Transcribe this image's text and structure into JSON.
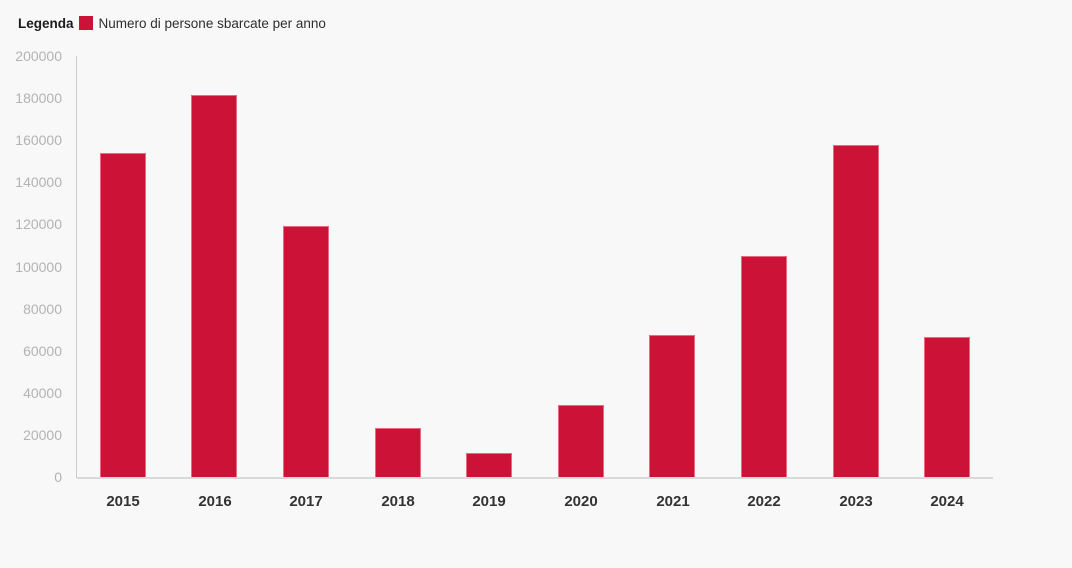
{
  "legend": {
    "title": "Legenda",
    "series_label": "Numero di persone sbarcate per anno"
  },
  "colors": {
    "bar": "#cc1237",
    "background": "#f8f8f8",
    "axis_line": "#cccccc",
    "baseline": "#d9d9d9",
    "y_label": "#b3b3b3",
    "x_label": "#333333"
  },
  "chart_data": {
    "type": "bar",
    "title": "",
    "xlabel": "",
    "ylabel": "",
    "categories": [
      "2015",
      "2016",
      "2017",
      "2018",
      "2019",
      "2020",
      "2021",
      "2022",
      "2023",
      "2024"
    ],
    "series": [
      {
        "name": "Numero di persone sbarcate per anno",
        "values": [
          153842,
          181436,
          119369,
          23370,
          11471,
          34154,
          67477,
          105131,
          157652,
          66317
        ]
      }
    ],
    "ylim": [
      0,
      200000
    ],
    "y_ticks": [
      0,
      20000,
      40000,
      60000,
      80000,
      100000,
      120000,
      140000,
      160000,
      180000,
      200000
    ],
    "grid": false,
    "legend_position": "top-left",
    "bar_color": "#cc1237"
  }
}
